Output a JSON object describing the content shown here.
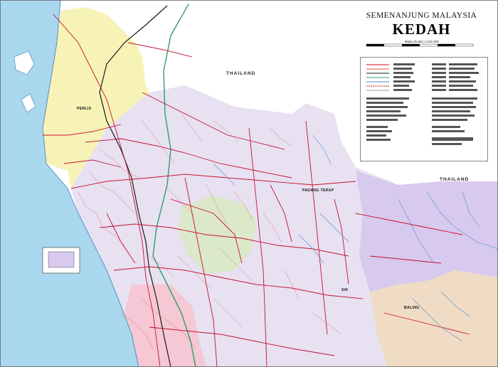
{
  "header": {
    "subtitle": "SEMENANJUNG MALAYSIA",
    "title": "KEDAH",
    "scale_text": "Skala (Scale) 1:125 000"
  },
  "labels": {
    "thailand_north": "THAILAND",
    "thailand_east": "THAILAND",
    "perlis": "PERLIS",
    "padang_terap": "PADANG TERAP",
    "baling": "BALING",
    "sik": "SIK"
  },
  "colors": {
    "sea": "#a9d7ee",
    "perlis": "#f7f2b6",
    "kedah_main": "#e7e1f2",
    "thailand_land": "#ffffff",
    "baling": "#f0dcc4",
    "east_district": "#d8c9ee",
    "roads_primary": "#c8102e",
    "roads_secondary": "#e04a4a",
    "railway": "#1a1a1a",
    "state_border": "#2e9e6a",
    "rivers": "#4a90d9"
  },
  "icons": {
    "compass": "north-arrow-icon",
    "legend": "legend-panel"
  }
}
